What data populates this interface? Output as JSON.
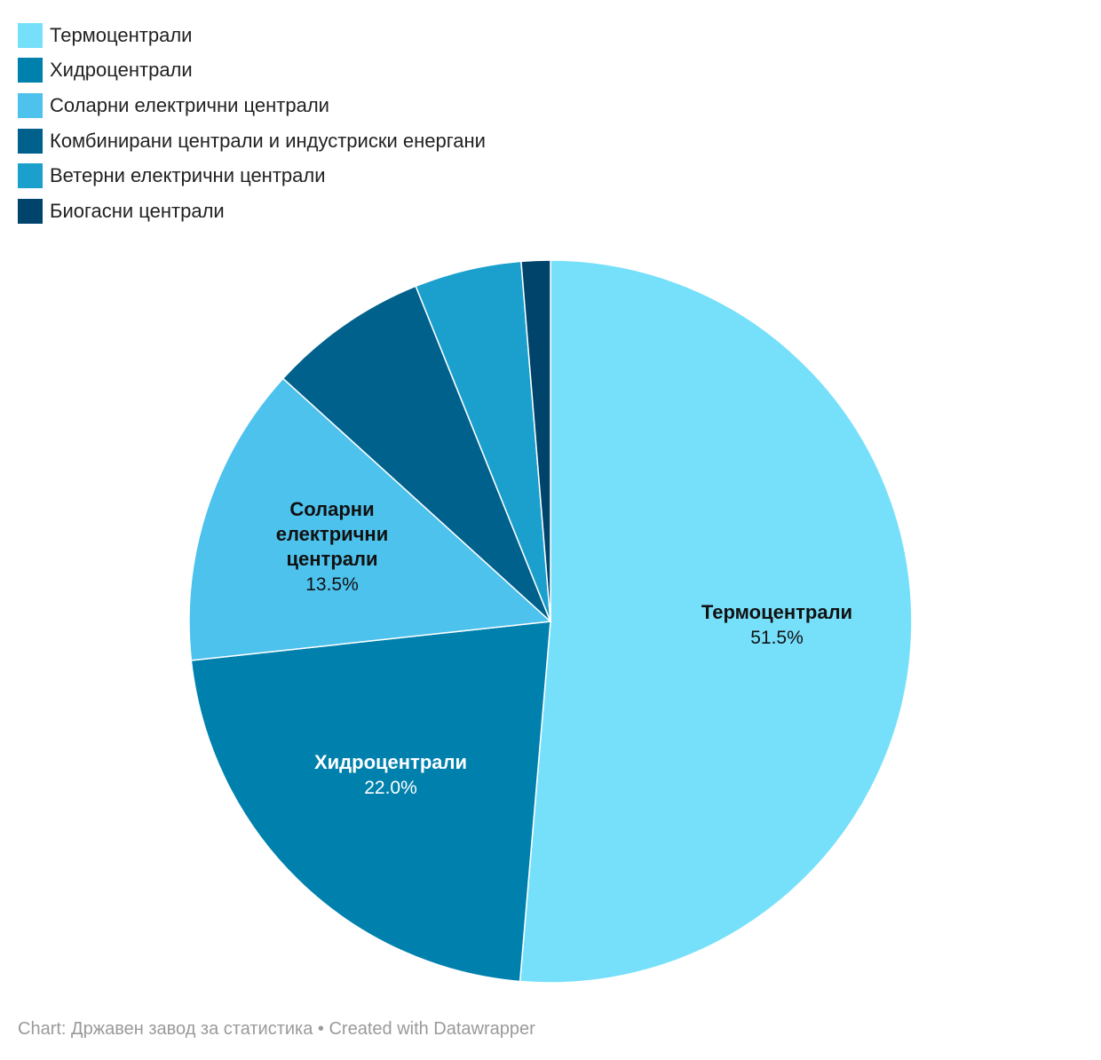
{
  "chart_data": {
    "type": "pie",
    "slices": [
      {
        "label": "Термоцентрали",
        "value": 51.5,
        "color": "#76e0fb",
        "value_label": "51.5%",
        "label_color": "#111111",
        "show_label": true
      },
      {
        "label": "Хидроцентрали",
        "value": 22.0,
        "color": "#0080ad",
        "value_label": "22.0%",
        "label_color": "#ffffff",
        "show_label": true
      },
      {
        "label": "Соларни електрични централи",
        "value": 13.5,
        "color": "#4dc2ed",
        "value_label": "13.5%",
        "label_color": "#111111",
        "show_label": true,
        "label_lines": [
          "Соларни",
          "електрични",
          "централи"
        ]
      },
      {
        "label": "Комбинирани централи и индустриски енергани",
        "value": 7.2,
        "color": "#00618c",
        "show_label": false
      },
      {
        "label": "Ветерни електрични централи",
        "value": 4.8,
        "color": "#1ba0ce",
        "show_label": false
      },
      {
        "label": "Биогасни централи",
        "value": 1.3,
        "color": "#00436b",
        "show_label": false
      }
    ],
    "legend_position": "top-left"
  },
  "footer": {
    "text": "Chart: Државен завод за статистика • Created with Datawrapper"
  }
}
